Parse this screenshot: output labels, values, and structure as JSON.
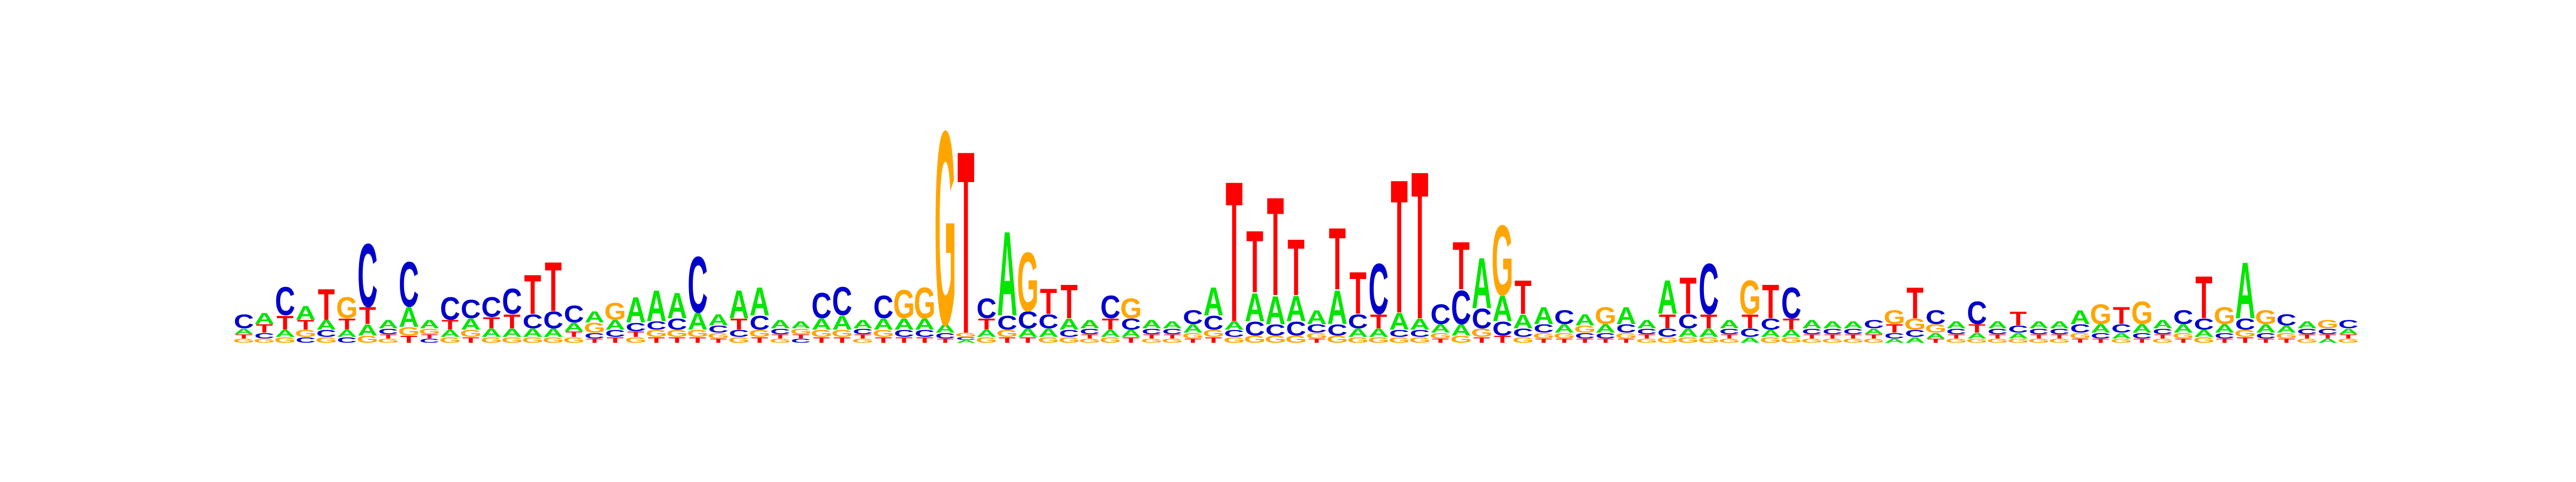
{
  "chart_data": {
    "type": "sequence-logo",
    "alphabet": [
      "A",
      "C",
      "G",
      "T"
    ],
    "colors": {
      "A": "#00e600",
      "C": "#0000cc",
      "G": "#ffa500",
      "T": "#ff0000"
    },
    "ylim": [
      0,
      2
    ],
    "positions": [
      {
        "C": 0.1,
        "A": 0.04,
        "G": 0.03,
        "T": 0.03
      },
      {
        "A": 0.08,
        "T": 0.06,
        "C": 0.04,
        "G": 0.03
      },
      {
        "C": 0.2,
        "T": 0.1,
        "A": 0.05,
        "G": 0.04
      },
      {
        "A": 0.1,
        "T": 0.07,
        "G": 0.05,
        "C": 0.04
      },
      {
        "T": 0.22,
        "A": 0.07,
        "C": 0.05,
        "G": 0.04
      },
      {
        "G": 0.15,
        "T": 0.08,
        "A": 0.05,
        "C": 0.04
      },
      {
        "C": 0.45,
        "T": 0.12,
        "A": 0.08,
        "G": 0.05
      },
      {
        "A": 0.06,
        "C": 0.04,
        "G": 0.03,
        "T": 0.03
      },
      {
        "C": 0.32,
        "A": 0.14,
        "G": 0.06,
        "T": 0.05
      },
      {
        "A": 0.06,
        "G": 0.04,
        "C": 0.03,
        "T": 0.03
      },
      {
        "C": 0.16,
        "T": 0.07,
        "A": 0.05,
        "G": 0.04
      },
      {
        "C": 0.13,
        "A": 0.08,
        "G": 0.05,
        "T": 0.04
      },
      {
        "C": 0.14,
        "T": 0.08,
        "A": 0.06,
        "G": 0.04
      },
      {
        "C": 0.18,
        "T": 0.1,
        "A": 0.06,
        "G": 0.04
      },
      {
        "T": 0.28,
        "C": 0.1,
        "A": 0.06,
        "G": 0.04
      },
      {
        "T": 0.35,
        "C": 0.12,
        "A": 0.06,
        "G": 0.04
      },
      {
        "C": 0.12,
        "A": 0.06,
        "G": 0.04,
        "T": 0.04
      },
      {
        "A": 0.08,
        "G": 0.07,
        "C": 0.04,
        "T": 0.03
      },
      {
        "G": 0.12,
        "A": 0.07,
        "C": 0.05,
        "T": 0.04
      },
      {
        "A": 0.18,
        "C": 0.06,
        "G": 0.04,
        "T": 0.04
      },
      {
        "A": 0.22,
        "C": 0.06,
        "G": 0.05,
        "T": 0.04
      },
      {
        "A": 0.18,
        "C": 0.08,
        "G": 0.05,
        "T": 0.04
      },
      {
        "C": 0.4,
        "A": 0.12,
        "G": 0.05,
        "T": 0.04
      },
      {
        "A": 0.08,
        "C": 0.05,
        "G": 0.04,
        "T": 0.03
      },
      {
        "A": 0.2,
        "T": 0.08,
        "C": 0.05,
        "G": 0.04
      },
      {
        "A": 0.2,
        "C": 0.1,
        "G": 0.05,
        "T": 0.04
      },
      {
        "A": 0.06,
        "C": 0.04,
        "G": 0.03,
        "T": 0.03
      },
      {
        "A": 0.05,
        "G": 0.04,
        "C": 0.03,
        "T": 0.03
      },
      {
        "C": 0.18,
        "A": 0.08,
        "G": 0.05,
        "T": 0.04
      },
      {
        "C": 0.2,
        "A": 0.1,
        "G": 0.05,
        "T": 0.04
      },
      {
        "A": 0.06,
        "C": 0.04,
        "G": 0.03,
        "T": 0.03
      },
      {
        "C": 0.16,
        "A": 0.08,
        "G": 0.05,
        "T": 0.04
      },
      {
        "G": 0.2,
        "A": 0.08,
        "C": 0.05,
        "T": 0.04
      },
      {
        "G": 0.22,
        "A": 0.08,
        "C": 0.05,
        "T": 0.04
      },
      {
        "G": 1.38,
        "A": 0.06,
        "C": 0.04,
        "T": 0.03
      },
      {
        "T": 1.3,
        "G": 0.03,
        "A": 0.02,
        "C": 0.02
      },
      {
        "C": 0.14,
        "T": 0.08,
        "A": 0.05,
        "G": 0.04
      },
      {
        "A": 0.6,
        "C": 0.1,
        "G": 0.05,
        "T": 0.04
      },
      {
        "G": 0.42,
        "C": 0.12,
        "A": 0.06,
        "T": 0.04
      },
      {
        "T": 0.18,
        "C": 0.1,
        "A": 0.06,
        "G": 0.04
      },
      {
        "T": 0.24,
        "A": 0.08,
        "C": 0.05,
        "G": 0.04
      },
      {
        "A": 0.06,
        "C": 0.04,
        "G": 0.03,
        "T": 0.03
      },
      {
        "C": 0.16,
        "T": 0.08,
        "A": 0.05,
        "G": 0.04
      },
      {
        "G": 0.14,
        "C": 0.08,
        "A": 0.05,
        "T": 0.04
      },
      {
        "A": 0.06,
        "C": 0.04,
        "G": 0.03,
        "T": 0.03
      },
      {
        "A": 0.05,
        "C": 0.04,
        "G": 0.03,
        "T": 0.03
      },
      {
        "C": 0.1,
        "A": 0.06,
        "G": 0.04,
        "T": 0.03
      },
      {
        "A": 0.2,
        "C": 0.1,
        "G": 0.05,
        "T": 0.04
      },
      {
        "T": 1.0,
        "A": 0.06,
        "C": 0.05,
        "G": 0.04
      },
      {
        "T": 0.44,
        "A": 0.2,
        "C": 0.1,
        "G": 0.05
      },
      {
        "T": 0.7,
        "A": 0.2,
        "C": 0.08,
        "G": 0.05
      },
      {
        "T": 0.4,
        "A": 0.18,
        "C": 0.1,
        "G": 0.05
      },
      {
        "A": 0.1,
        "C": 0.06,
        "G": 0.04,
        "T": 0.03
      },
      {
        "T": 0.44,
        "A": 0.24,
        "C": 0.08,
        "G": 0.05
      },
      {
        "T": 0.3,
        "C": 0.1,
        "A": 0.06,
        "G": 0.04
      },
      {
        "C": 0.36,
        "T": 0.1,
        "A": 0.06,
        "G": 0.04
      },
      {
        "T": 0.95,
        "A": 0.12,
        "C": 0.05,
        "G": 0.04
      },
      {
        "T": 1.05,
        "A": 0.08,
        "C": 0.05,
        "G": 0.04
      },
      {
        "C": 0.14,
        "A": 0.06,
        "G": 0.04,
        "T": 0.03
      },
      {
        "T": 0.34,
        "C": 0.24,
        "A": 0.08,
        "G": 0.05
      },
      {
        "A": 0.36,
        "C": 0.14,
        "G": 0.06,
        "T": 0.04
      },
      {
        "G": 0.5,
        "A": 0.18,
        "C": 0.1,
        "T": 0.05
      },
      {
        "T": 0.24,
        "A": 0.1,
        "C": 0.06,
        "G": 0.04
      },
      {
        "A": 0.12,
        "C": 0.06,
        "G": 0.04,
        "T": 0.03
      },
      {
        "C": 0.1,
        "A": 0.06,
        "G": 0.04,
        "T": 0.03
      },
      {
        "A": 0.08,
        "G": 0.05,
        "C": 0.04,
        "T": 0.03
      },
      {
        "G": 0.12,
        "A": 0.06,
        "C": 0.04,
        "T": 0.03
      },
      {
        "A": 0.12,
        "C": 0.06,
        "G": 0.04,
        "T": 0.03
      },
      {
        "A": 0.06,
        "C": 0.04,
        "G": 0.03,
        "T": 0.03
      },
      {
        "A": 0.24,
        "T": 0.1,
        "C": 0.06,
        "G": 0.04
      },
      {
        "T": 0.26,
        "C": 0.1,
        "A": 0.06,
        "G": 0.04
      },
      {
        "C": 0.36,
        "T": 0.1,
        "A": 0.06,
        "G": 0.04
      },
      {
        "A": 0.06,
        "C": 0.04,
        "G": 0.03,
        "T": 0.03
      },
      {
        "G": 0.24,
        "T": 0.1,
        "C": 0.06,
        "A": 0.04
      },
      {
        "T": 0.24,
        "C": 0.08,
        "A": 0.05,
        "G": 0.04
      },
      {
        "C": 0.22,
        "T": 0.08,
        "A": 0.05,
        "G": 0.04
      },
      {
        "A": 0.06,
        "C": 0.04,
        "G": 0.03,
        "T": 0.03
      },
      {
        "A": 0.05,
        "C": 0.04,
        "G": 0.03,
        "T": 0.03
      },
      {
        "A": 0.05,
        "C": 0.04,
        "G": 0.03,
        "T": 0.03
      },
      {
        "C": 0.06,
        "A": 0.04,
        "G": 0.03,
        "T": 0.03
      },
      {
        "G": 0.1,
        "T": 0.06,
        "C": 0.04,
        "A": 0.03
      },
      {
        "T": 0.22,
        "G": 0.08,
        "C": 0.05,
        "A": 0.04
      },
      {
        "C": 0.1,
        "G": 0.06,
        "A": 0.04,
        "T": 0.03
      },
      {
        "A": 0.05,
        "C": 0.04,
        "G": 0.03,
        "T": 0.03
      },
      {
        "C": 0.16,
        "T": 0.06,
        "A": 0.04,
        "G": 0.03
      },
      {
        "A": 0.05,
        "C": 0.04,
        "G": 0.03,
        "T": 0.03
      },
      {
        "T": 0.1,
        "C": 0.05,
        "A": 0.04,
        "G": 0.03
      },
      {
        "A": 0.05,
        "C": 0.04,
        "G": 0.03,
        "T": 0.03
      },
      {
        "A": 0.05,
        "C": 0.04,
        "G": 0.03,
        "T": 0.03
      },
      {
        "A": 0.1,
        "C": 0.06,
        "G": 0.04,
        "T": 0.03
      },
      {
        "G": 0.14,
        "A": 0.06,
        "C": 0.04,
        "T": 0.03
      },
      {
        "T": 0.12,
        "C": 0.06,
        "A": 0.04,
        "G": 0.03
      },
      {
        "G": 0.16,
        "A": 0.06,
        "C": 0.04,
        "T": 0.03
      },
      {
        "A": 0.06,
        "C": 0.04,
        "G": 0.03,
        "T": 0.03
      },
      {
        "C": 0.1,
        "A": 0.06,
        "G": 0.04,
        "T": 0.03
      },
      {
        "T": 0.3,
        "C": 0.08,
        "A": 0.05,
        "G": 0.04
      },
      {
        "G": 0.12,
        "A": 0.06,
        "C": 0.04,
        "T": 0.03
      },
      {
        "A": 0.4,
        "C": 0.08,
        "G": 0.05,
        "T": 0.04
      },
      {
        "G": 0.1,
        "A": 0.06,
        "C": 0.04,
        "T": 0.03
      },
      {
        "C": 0.08,
        "A": 0.05,
        "G": 0.04,
        "T": 0.03
      },
      {
        "A": 0.05,
        "C": 0.04,
        "G": 0.03,
        "T": 0.03
      },
      {
        "G": 0.06,
        "C": 0.04,
        "A": 0.03,
        "T": 0.03
      },
      {
        "C": 0.06,
        "A": 0.04,
        "G": 0.03,
        "T": 0.03
      }
    ]
  }
}
